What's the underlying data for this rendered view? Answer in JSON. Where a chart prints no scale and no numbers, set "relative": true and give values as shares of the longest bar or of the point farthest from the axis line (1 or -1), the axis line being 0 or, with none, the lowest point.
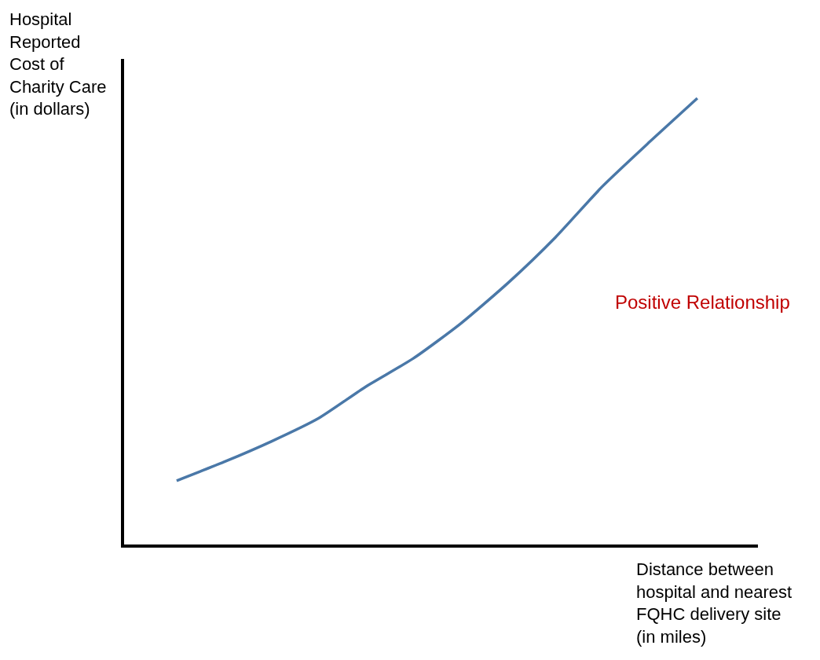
{
  "chart_data": {
    "type": "line",
    "relative": true,
    "xlabel": "Distance between hospital and nearest FQHC delivery site (in miles)",
    "ylabel": "Hospital Reported Cost of Charity Care (in dollars)",
    "annotations": [
      "Positive Relationship"
    ],
    "categories": [
      null,
      null,
      null,
      null,
      null,
      null,
      null,
      null,
      null,
      null,
      null,
      null
    ],
    "series": [
      {
        "color": "#4a78a8",
        "values": [
          0.143,
          0.185,
          0.231,
          0.283,
          0.354,
          0.417,
          0.495,
          0.586,
          0.688,
          0.803,
          0.903,
          1
        ]
      }
    ]
  }
}
